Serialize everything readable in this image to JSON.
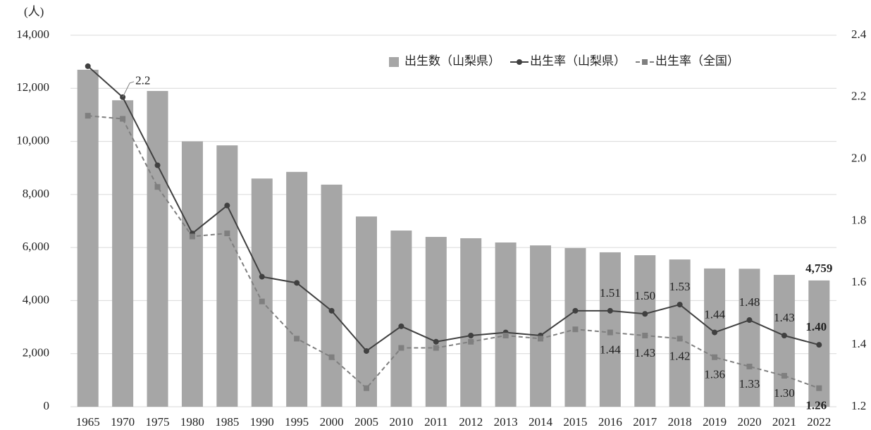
{
  "chart_data": {
    "type": "bar_line",
    "y_unit_label": "(人)",
    "categories": [
      "1965",
      "1970",
      "1975",
      "1980",
      "1985",
      "1990",
      "1995",
      "2000",
      "2005",
      "2010",
      "2011",
      "2012",
      "2013",
      "2014",
      "2015",
      "2016",
      "2017",
      "2018",
      "2019",
      "2020",
      "2021",
      "2022"
    ],
    "ylim": [
      0,
      14000
    ],
    "yticks": [
      0,
      {
        "value": 2000,
        "label": "2,000"
      },
      {
        "value": 4000,
        "label": "4,000"
      },
      {
        "value": 6000,
        "label": "6,000"
      },
      {
        "value": 8000,
        "label": "8,000"
      },
      {
        "value": 10000,
        "label": "10,000"
      },
      {
        "value": 12000,
        "label": "12,000"
      },
      {
        "value": 14000,
        "label": "14,000"
      }
    ],
    "y2lim": [
      1.2,
      2.4
    ],
    "y2ticks": [
      1.2,
      1.4,
      1.6,
      1.8,
      {
        "value": 2.0,
        "label": "2.0"
      },
      2.2,
      2.4
    ],
    "grid": true,
    "legend": "top-right",
    "series": [
      {
        "name": "出生数（山梨県）",
        "type": "bar",
        "color": "#a6a6a6",
        "values": [
          12700,
          11550,
          11900,
          10000,
          9850,
          8600,
          8850,
          8370,
          7170,
          6640,
          6400,
          6350,
          6190,
          6080,
          5980,
          5820,
          5710,
          5550,
          5210,
          5200,
          4970,
          4759
        ],
        "value_labels": [
          null,
          null,
          null,
          null,
          null,
          null,
          null,
          null,
          null,
          null,
          null,
          null,
          null,
          null,
          null,
          null,
          null,
          null,
          null,
          null,
          null,
          "4,759"
        ]
      },
      {
        "name": "出生率（山梨県）",
        "type": "line",
        "axis": "y2",
        "color": "#404040",
        "dash": false,
        "values": [
          2.3,
          2.2,
          1.98,
          1.76,
          1.85,
          1.62,
          1.6,
          1.51,
          1.38,
          1.46,
          1.41,
          1.43,
          1.44,
          1.43,
          1.51,
          1.51,
          1.5,
          1.53,
          1.44,
          1.48,
          1.43,
          1.4
        ],
        "value_labels": [
          null,
          "2.2",
          null,
          null,
          null,
          null,
          null,
          null,
          null,
          null,
          null,
          null,
          null,
          null,
          null,
          "1.51",
          "1.50",
          "1.53",
          "1.44",
          "1.48",
          "1.43",
          "1.40"
        ]
      },
      {
        "name": "出生率（全国）",
        "type": "line",
        "axis": "y2",
        "color": "#7f7f7f",
        "dash": true,
        "values": [
          2.14,
          2.13,
          1.91,
          1.75,
          1.76,
          1.54,
          1.42,
          1.36,
          1.26,
          1.39,
          1.39,
          1.41,
          1.43,
          1.42,
          1.45,
          1.44,
          1.43,
          1.42,
          1.36,
          1.33,
          1.3,
          1.26
        ],
        "value_labels": [
          null,
          null,
          null,
          null,
          null,
          null,
          null,
          null,
          null,
          null,
          null,
          null,
          null,
          null,
          null,
          "1.44",
          "1.43",
          "1.42",
          "1.36",
          "1.33",
          "1.30",
          "1.26"
        ]
      }
    ]
  }
}
